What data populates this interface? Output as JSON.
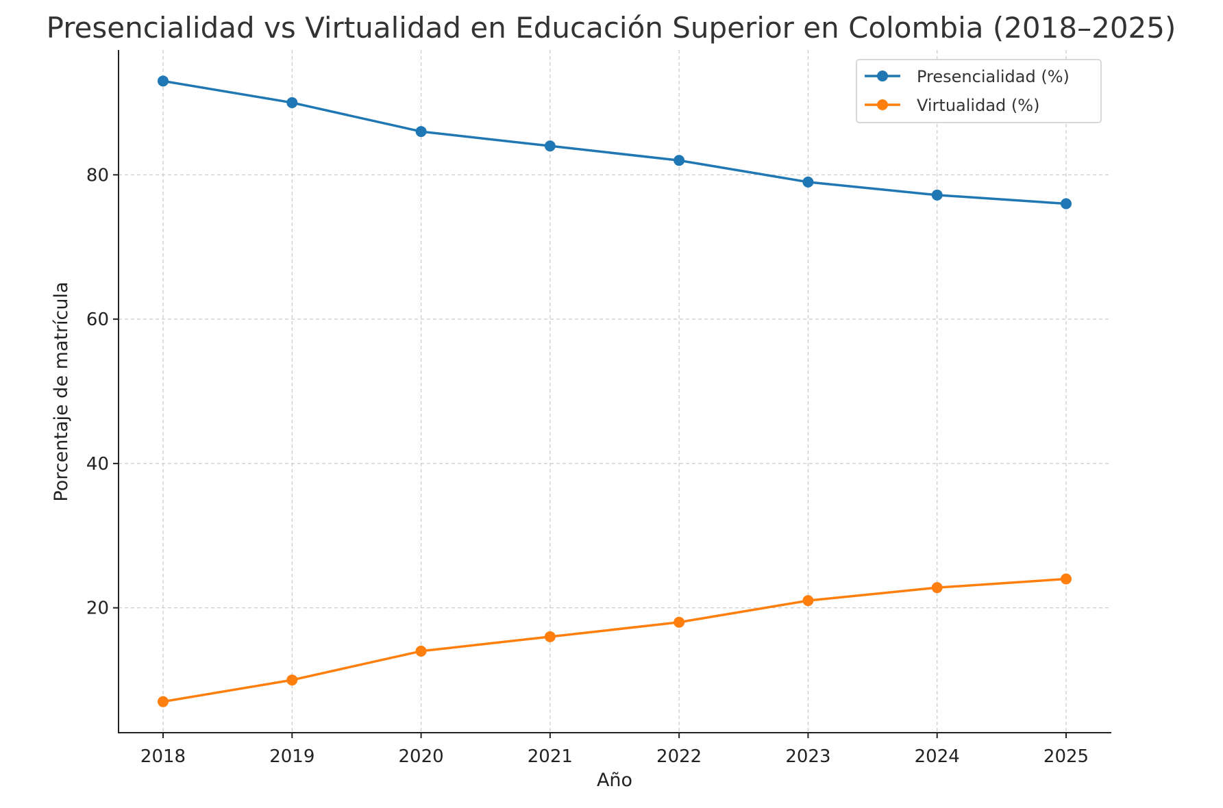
{
  "chart_data": {
    "type": "line",
    "title": "Presencialidad vs Virtualidad en Educación Superior en Colombia (2018–2025)",
    "xlabel": "Año",
    "ylabel": "Porcentaje de matrícula",
    "x": [
      2018,
      2019,
      2020,
      2021,
      2022,
      2023,
      2024,
      2025
    ],
    "xticks": [
      "2018",
      "2019",
      "2020",
      "2021",
      "2022",
      "2023",
      "2024",
      "2025"
    ],
    "yticks": [
      "20",
      "40",
      "60",
      "80"
    ],
    "ytick_values": [
      20,
      40,
      60,
      80
    ],
    "ylim": [
      2.7,
      97.3
    ],
    "grid": true,
    "legend_position": "top-right",
    "series": [
      {
        "name": "Presencialidad (%)",
        "color": "#1f77b4",
        "values": [
          93,
          90,
          86,
          84,
          82,
          79,
          77.2,
          76
        ]
      },
      {
        "name": "Virtualidad (%)",
        "color": "#ff7f0e",
        "values": [
          7,
          10,
          14,
          16,
          18,
          21,
          22.8,
          24
        ]
      }
    ]
  }
}
